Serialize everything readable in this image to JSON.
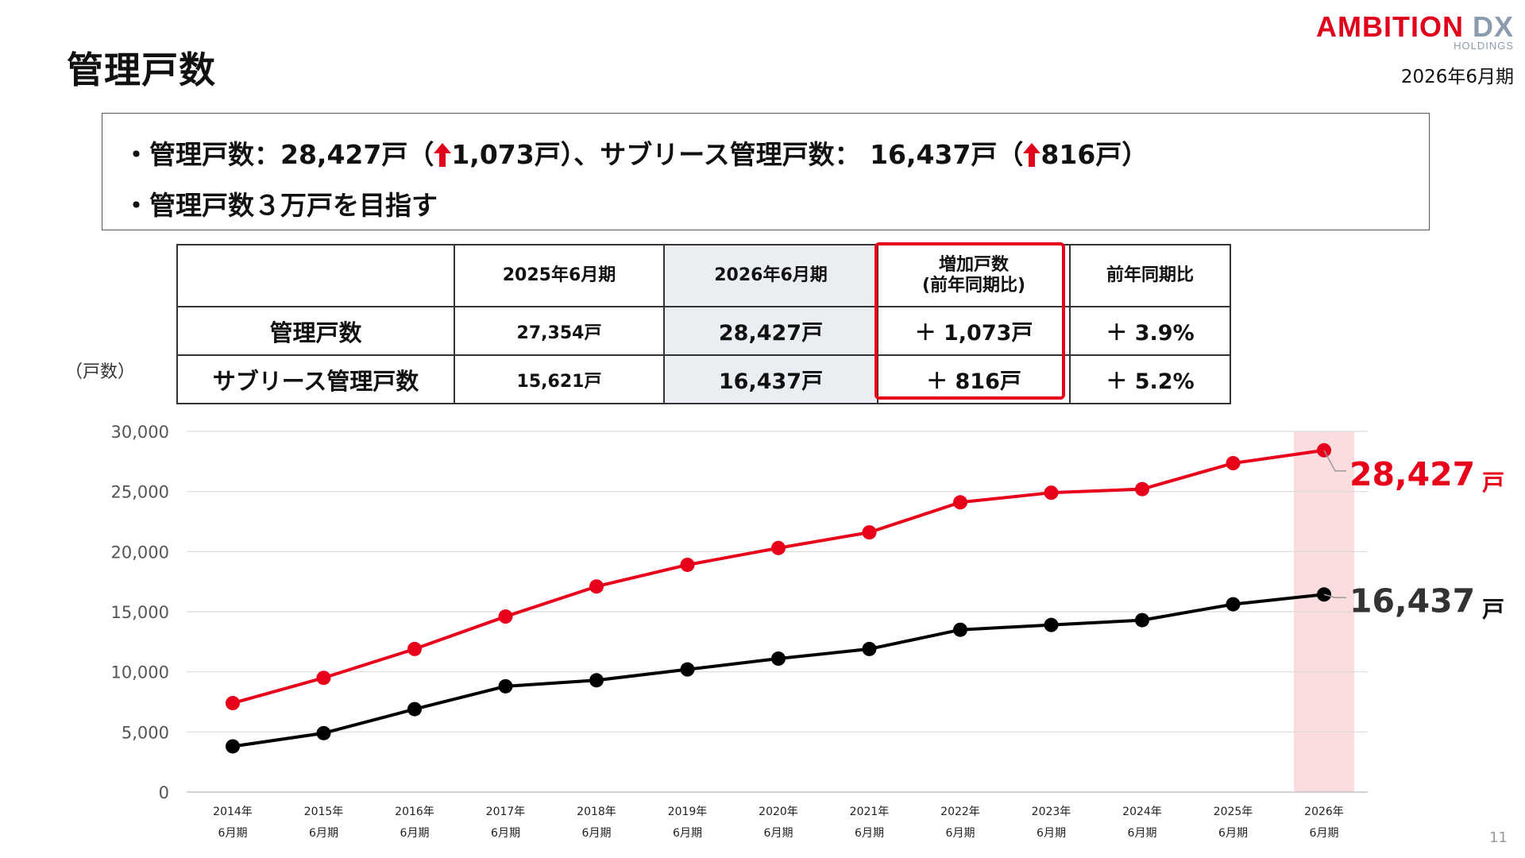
{
  "page_title": "管理戸数",
  "logo": {
    "main_red": "AMBITION",
    "main_gray": "DX",
    "sub": "HOLDINGS"
  },
  "period": "2026年6月期",
  "summary": {
    "line1_a": "・管理戸数：28,427戸（",
    "line1_b": "1,073戸）、サブリース管理戸数： 16,437戸（",
    "line1_c": "816戸）",
    "line2": "・管理戸数３万戸を目指す",
    "arrow_icon": "up-arrow-icon"
  },
  "table": {
    "headers": [
      "",
      "2025年6月期",
      "2026年6月期",
      "増加戸数",
      "前年同期比"
    ],
    "header_increase_sub": "(前年同期比)",
    "rows": [
      {
        "label": "管理戸数",
        "prev": "27,354戸",
        "curr": "28,427戸",
        "increase": "＋ 1,073戸",
        "ratio": "＋ 3.9%"
      },
      {
        "label": "サブリース管理戸数",
        "prev": "15,621戸",
        "curr": "16,437戸",
        "increase": "＋ 816戸",
        "ratio": "＋ 5.2%"
      }
    ]
  },
  "chart_unit_label": "（戸数）",
  "chart_data": {
    "type": "line",
    "x": [
      "2014年\n6月期",
      "2015年\n6月期",
      "2016年\n6月期",
      "2017年\n6月期",
      "2018年\n6月期",
      "2019年\n6月期",
      "2020年\n6月期",
      "2021年\n6月期",
      "2022年\n6月期",
      "2023年\n6月期",
      "2024年\n6月期",
      "2025年\n6月期",
      "2026年\n6月期"
    ],
    "series": [
      {
        "color": "#e8001b",
        "values": [
          7400,
          9500,
          11900,
          14600,
          17100,
          18900,
          20300,
          21600,
          24100,
          24900,
          25200,
          27354,
          28427
        ]
      },
      {
        "color": "#000000",
        "values": [
          3800,
          4900,
          6900,
          8800,
          9300,
          10200,
          11100,
          11900,
          13500,
          13900,
          14300,
          15621,
          16437
        ]
      }
    ],
    "ylim": [
      0,
      30000
    ],
    "yticks": [
      "0",
      "5,000",
      "10,000",
      "15,000",
      "20,000",
      "25,000",
      "30,000"
    ],
    "grid": true,
    "highlight_category_index": 12,
    "highlight_color": "#fbdde0",
    "end_labels": [
      {
        "value": "28,427",
        "unit": "戸",
        "color": "#e8001b"
      },
      {
        "value": "16,437",
        "unit": "戸",
        "color": "#333333"
      }
    ]
  },
  "page_number": "11"
}
